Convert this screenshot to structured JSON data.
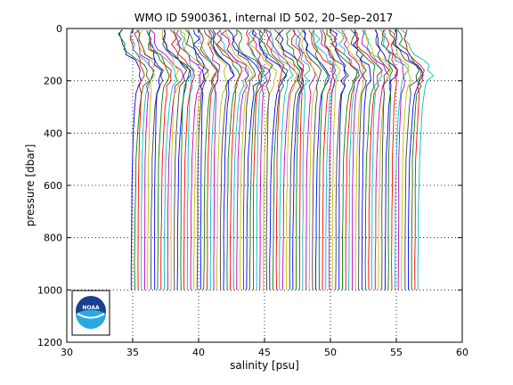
{
  "chart_data": {
    "type": "line",
    "title": "WMO ID 5900361, internal ID 502, 20–Sep–2017",
    "xlabel": "salinity [psu]",
    "ylabel": "pressure [dbar]",
    "xlim": [
      30,
      60
    ],
    "ylim": [
      0,
      1200
    ],
    "y_reversed": true,
    "xticks": [
      "30",
      "35",
      "40",
      "45",
      "50",
      "55",
      "60"
    ],
    "yticks": [
      "0",
      "200",
      "400",
      "600",
      "800",
      "1000",
      "1200"
    ],
    "grid": "dotted",
    "logo": {
      "text": "NOAA",
      "icon": "noaa-logo-icon",
      "position": "bottom-left"
    },
    "series_colors": [
      "#0000ff",
      "#008000",
      "#ff0000",
      "#00bfbf",
      "#bf00bf",
      "#bfbf00",
      "#404040"
    ],
    "profiles": {
      "count": 88,
      "description_note": "Salinity profiles, each successive profile offset by +0.25 psu",
      "first_deep_salinity": 34.9,
      "offset_per_profile": 0.25,
      "pressure_levels": [
        5,
        20,
        40,
        60,
        80,
        100,
        120,
        140,
        160,
        180,
        200,
        220,
        250,
        300,
        400,
        500,
        600,
        700,
        800,
        900,
        1000
      ],
      "base_shape": [
        -0.6,
        -0.55,
        -0.5,
        -0.5,
        -0.35,
        -0.15,
        0.1,
        0.35,
        0.55,
        0.55,
        0.45,
        0.35,
        0.28,
        0.2,
        0.12,
        0.06,
        0.04,
        0.02,
        0.01,
        0.0,
        0.0
      ]
    }
  }
}
